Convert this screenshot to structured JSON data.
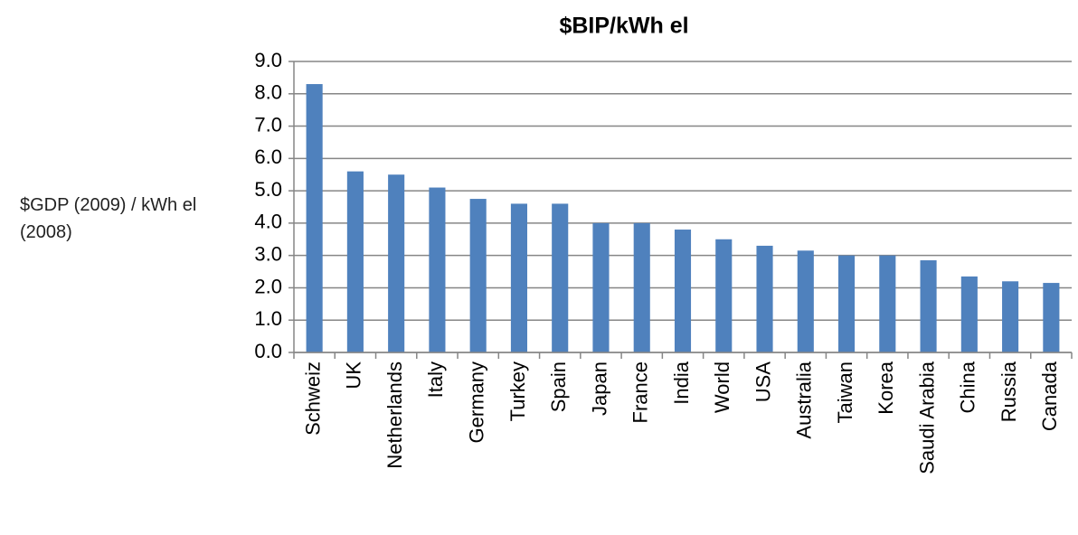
{
  "chart_data": {
    "type": "bar",
    "title": "$BIP/kWh el",
    "ylabel": "$GDP (2009) / kWh el (2008)",
    "categories": [
      "Schweiz",
      "UK",
      "Netherlands",
      "Italy",
      "Germany",
      "Turkey",
      "Spain",
      "Japan",
      "France",
      "India",
      "World",
      "USA",
      "Australia",
      "Taiwan",
      "Korea",
      "Saudi Arabia",
      "China",
      "Russia",
      "Canada"
    ],
    "values": [
      8.3,
      5.6,
      5.5,
      5.1,
      4.75,
      4.6,
      4.6,
      4.0,
      4.0,
      3.8,
      3.5,
      3.3,
      3.15,
      3.0,
      3.0,
      2.85,
      2.35,
      2.2,
      2.15
    ],
    "color": "#4f81bd",
    "ylim": [
      0,
      9
    ],
    "yticks": [
      {
        "value": 0,
        "label": "0.0"
      },
      {
        "value": 1,
        "label": "1.0"
      },
      {
        "value": 2,
        "label": "2.0"
      },
      {
        "value": 3,
        "label": "3.0"
      },
      {
        "value": 4,
        "label": "4.0"
      },
      {
        "value": 5,
        "label": "5.0"
      },
      {
        "value": 6,
        "label": "6.0"
      },
      {
        "value": 7,
        "label": "7.0"
      },
      {
        "value": 8,
        "label": "8.0"
      },
      {
        "value": 9,
        "label": "9.0"
      }
    ],
    "grid": true
  }
}
